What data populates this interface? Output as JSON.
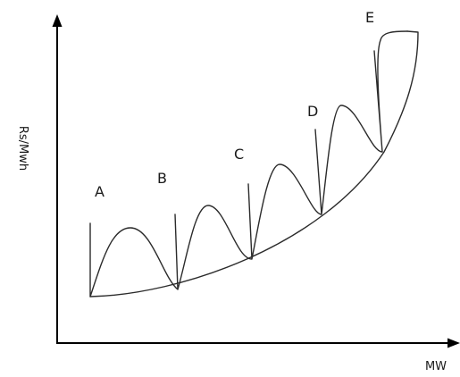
{
  "axes": {
    "y_label": "Rs/Mwh",
    "x_label": "MW"
  },
  "points": [
    {
      "label": "A"
    },
    {
      "label": "B"
    },
    {
      "label": "C"
    },
    {
      "label": "D"
    },
    {
      "label": "E"
    }
  ]
}
